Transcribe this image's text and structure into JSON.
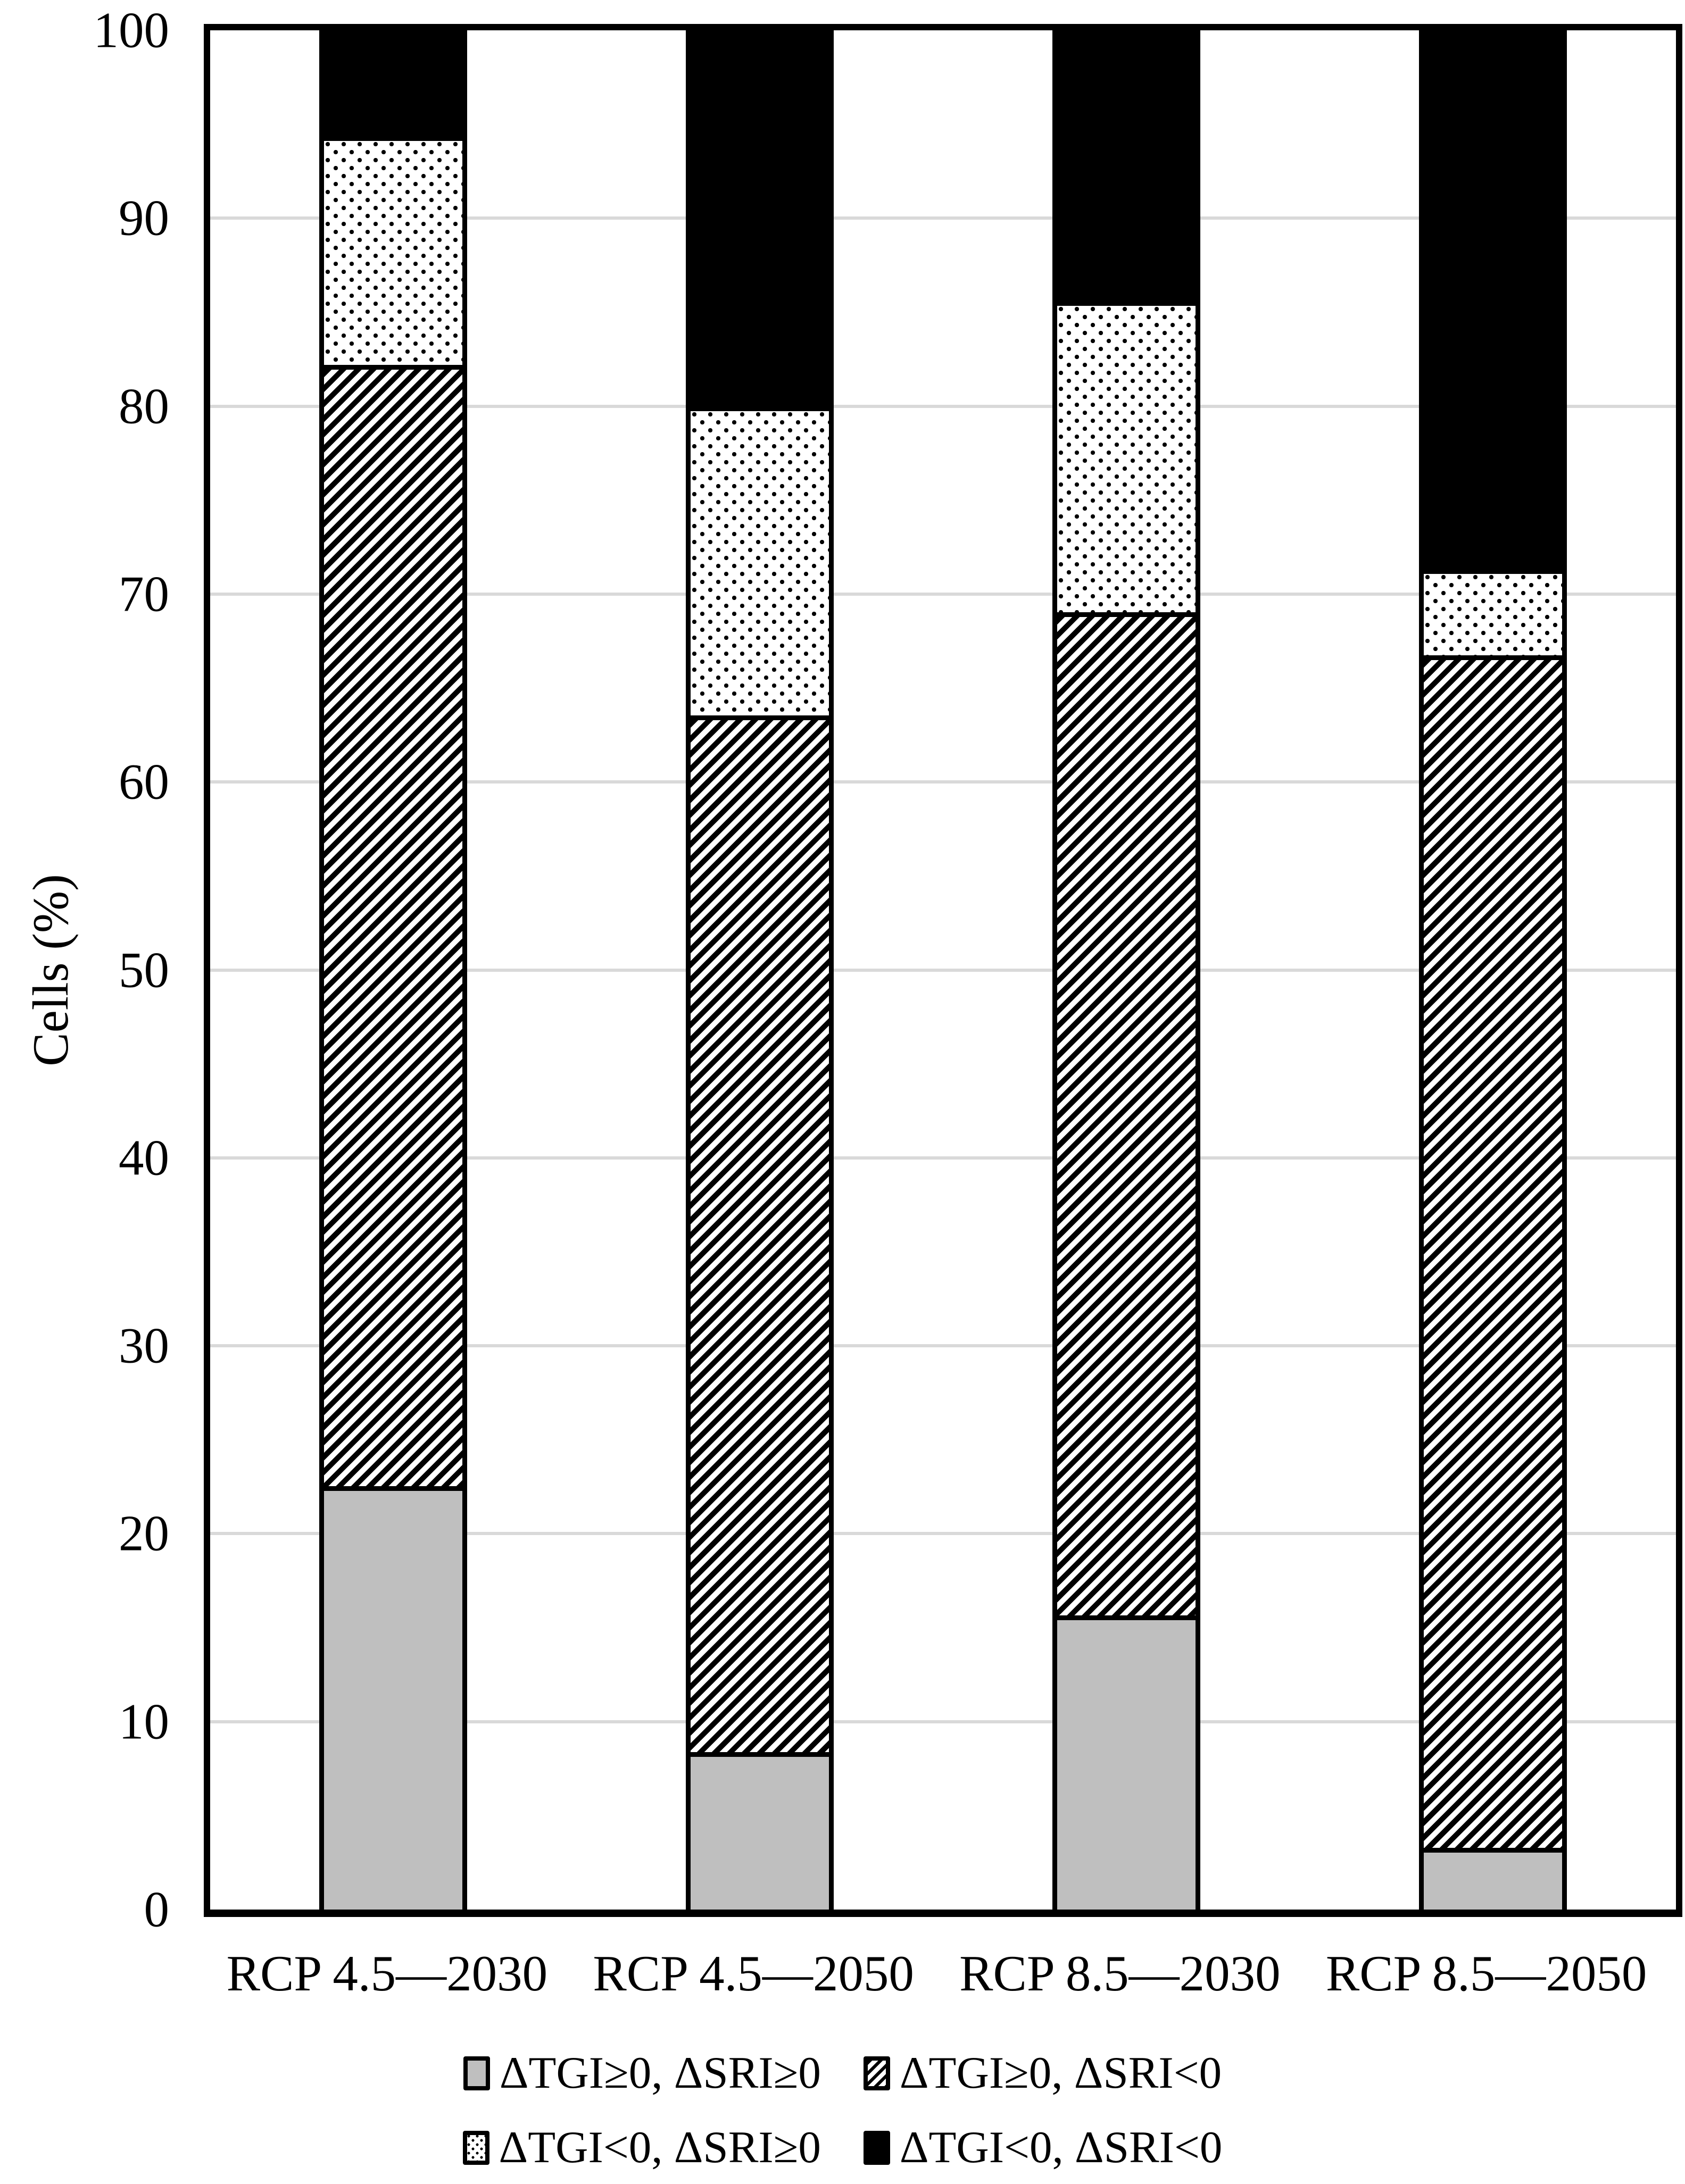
{
  "chart_data": {
    "type": "bar",
    "stacked": true,
    "title": "",
    "xlabel": "",
    "ylabel": "Cells (%)",
    "ylim": [
      0,
      100
    ],
    "yticks": [
      0,
      10,
      20,
      30,
      40,
      50,
      60,
      70,
      80,
      90,
      100
    ],
    "grid": "horizontal light-gray gridlines every 10, full plot box border",
    "legend_position": "bottom, two centered rows",
    "categories": [
      "RCP 4.5—2030",
      "RCP 4.5—2050",
      "RCP 8.5—2030",
      "RCP 8.5—2050"
    ],
    "series": [
      {
        "name": "ΔTGI≥0, ΔSRI≥0",
        "pattern": "solid-gray",
        "color": "#bfbfbf",
        "values": [
          22.6,
          8.4,
          15.7,
          3.3
        ]
      },
      {
        "name": "ΔTGI≥0, ΔSRI<0",
        "pattern": "diagonal-hatch",
        "color": "#000000 stripes on #ffffff",
        "values": [
          59.8,
          55.3,
          53.5,
          63.6
        ]
      },
      {
        "name": "ΔTGI<0, ΔSRI≥0",
        "pattern": "dotted",
        "color": "#000000 dots on #ffffff",
        "values": [
          12.2,
          16.5,
          16.6,
          4.6
        ]
      },
      {
        "name": "ΔTGI<0, ΔSRI<0",
        "pattern": "solid-black",
        "color": "#000000",
        "values": [
          5.4,
          19.8,
          14.2,
          28.5
        ]
      }
    ],
    "stack_totals": [
      100,
      100,
      100,
      100
    ],
    "legend_rows": [
      [
        0,
        1
      ],
      [
        2,
        3
      ]
    ]
  },
  "colors": {
    "background": "#ffffff",
    "gridline": "#d9d9d9",
    "axis_and_outlines": "#000000",
    "gray_fill": "#bfbfbf"
  }
}
